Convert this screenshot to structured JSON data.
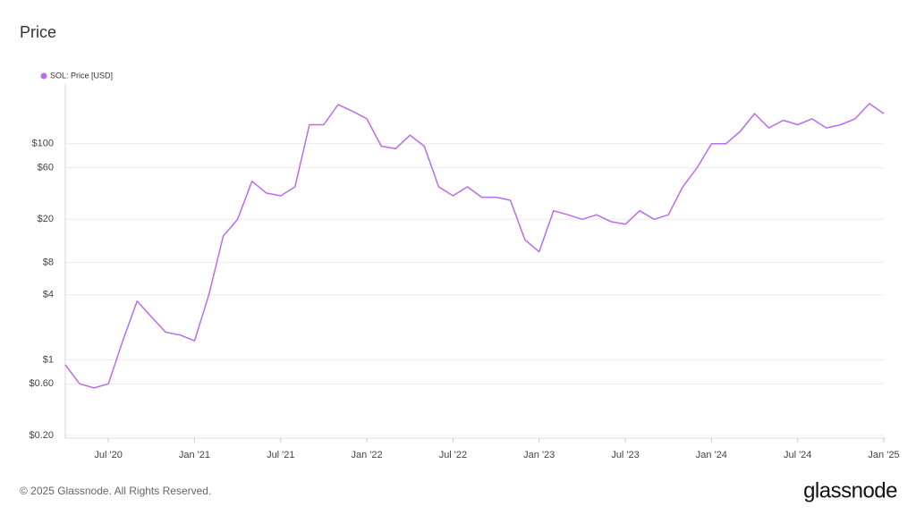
{
  "chart_data": {
    "type": "line",
    "title": "Price",
    "x": [
      "2020-04",
      "2020-05",
      "2020-06",
      "2020-07",
      "2020-08",
      "2020-09",
      "2020-10",
      "2020-11",
      "2020-12",
      "2021-01",
      "2021-02",
      "2021-03",
      "2021-04",
      "2021-05",
      "2021-06",
      "2021-07",
      "2021-08",
      "2021-09",
      "2021-10",
      "2021-11",
      "2021-12",
      "2022-01",
      "2022-02",
      "2022-03",
      "2022-04",
      "2022-05",
      "2022-06",
      "2022-07",
      "2022-08",
      "2022-09",
      "2022-10",
      "2022-11",
      "2022-12",
      "2023-01",
      "2023-02",
      "2023-03",
      "2023-04",
      "2023-05",
      "2023-06",
      "2023-07",
      "2023-08",
      "2023-09",
      "2023-10",
      "2023-11",
      "2023-12",
      "2024-01",
      "2024-02",
      "2024-03",
      "2024-04",
      "2024-05",
      "2024-06",
      "2024-07",
      "2024-08",
      "2024-09",
      "2024-10",
      "2024-11",
      "2024-12",
      "2025-01"
    ],
    "series": [
      {
        "name": "SOL: Price [USD]",
        "color": "#b96cf2",
        "values": [
          0.9,
          0.6,
          0.55,
          0.6,
          1.5,
          3.5,
          2.5,
          1.8,
          1.7,
          1.5,
          4,
          14,
          20,
          45,
          35,
          33,
          40,
          150,
          150,
          230,
          200,
          170,
          95,
          90,
          120,
          95,
          40,
          33,
          40,
          32,
          32,
          30,
          13,
          10,
          24,
          22,
          20,
          22,
          19,
          18,
          24,
          20,
          22,
          40,
          60,
          100,
          100,
          130,
          190,
          140,
          165,
          150,
          170,
          140,
          150,
          170,
          235,
          190
        ]
      }
    ],
    "xlim": [
      "2020-04",
      "2025-01"
    ],
    "xticks": [
      {
        "value": "2020-07",
        "label": "Jul '20"
      },
      {
        "value": "2021-01",
        "label": "Jan '21"
      },
      {
        "value": "2021-07",
        "label": "Jul '21"
      },
      {
        "value": "2022-01",
        "label": "Jan '22"
      },
      {
        "value": "2022-07",
        "label": "Jul '22"
      },
      {
        "value": "2023-01",
        "label": "Jan '23"
      },
      {
        "value": "2023-07",
        "label": "Jul '23"
      },
      {
        "value": "2024-01",
        "label": "Jan '24"
      },
      {
        "value": "2024-07",
        "label": "Jul '24"
      },
      {
        "value": "2025-01",
        "label": "Jan '25"
      }
    ],
    "ylim": [
      0.2,
      350
    ],
    "yticks": [
      {
        "value": 0.2,
        "label": "$0.20"
      },
      {
        "value": 0.6,
        "label": "$0.60"
      },
      {
        "value": 1,
        "label": "$1"
      },
      {
        "value": 4,
        "label": "$4"
      },
      {
        "value": 8,
        "label": "$8"
      },
      {
        "value": 20,
        "label": "$20"
      },
      {
        "value": 60,
        "label": "$60"
      },
      {
        "value": 100,
        "label": "$100"
      }
    ],
    "log_scale": true,
    "grid": true,
    "legend": "top-left"
  },
  "footer": {
    "copyright": "© 2025 Glassnode. All Rights Reserved.",
    "brand": "glassnode"
  }
}
